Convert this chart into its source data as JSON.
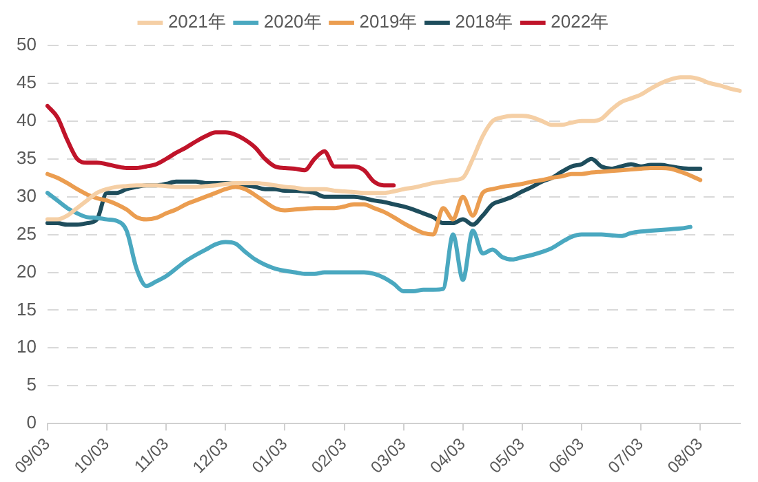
{
  "chart_data": {
    "type": "line",
    "categories": [
      "09/03",
      null,
      null,
      null,
      null,
      null,
      "10/03",
      null,
      null,
      null,
      null,
      null,
      "11/03",
      null,
      null,
      null,
      null,
      null,
      "12/03",
      null,
      null,
      null,
      null,
      null,
      "01/03",
      null,
      null,
      null,
      null,
      null,
      "02/03",
      null,
      null,
      null,
      null,
      null,
      "03/03",
      null,
      null,
      null,
      null,
      null,
      "04/03",
      null,
      null,
      null,
      null,
      null,
      "05/03",
      null,
      null,
      null,
      null,
      null,
      "06/03",
      null,
      null,
      null,
      null,
      null,
      "07/03",
      null,
      null,
      null,
      null,
      null,
      "08/03",
      null,
      null,
      null,
      null
    ],
    "series": [
      {
        "name": "2021年",
        "color": "#f5cfa5",
        "values": [
          27,
          27,
          27.5,
          28.5,
          29.5,
          30.5,
          31,
          31.3,
          31.4,
          31.5,
          31.5,
          31.5,
          31.4,
          31.3,
          31.3,
          31.3,
          31.4,
          31.5,
          31.7,
          31.8,
          31.8,
          31.8,
          31.7,
          31.5,
          31.3,
          31.2,
          31,
          31,
          31,
          30.8,
          30.7,
          30.6,
          30.5,
          30.5,
          30.5,
          30.7,
          31,
          31.2,
          31.5,
          31.8,
          32,
          32.2,
          32.5,
          35,
          38,
          40,
          40.5,
          40.7,
          40.7,
          40.5,
          40,
          39.5,
          39.5,
          39.8,
          40,
          40,
          40.3,
          41.5,
          42.5,
          43,
          43.5,
          44.3,
          45,
          45.5,
          45.8,
          45.8,
          45.5,
          45,
          44.7,
          44.3,
          44
        ]
      },
      {
        "name": "2020年",
        "color": "#4aa8c0",
        "values": [
          30.5,
          29.5,
          28.5,
          27.8,
          27.3,
          27.2,
          27,
          26.8,
          25.5,
          20.5,
          18.2,
          18.8,
          19.5,
          20.5,
          21.5,
          22.3,
          23,
          23.7,
          24,
          23.8,
          22.7,
          21.7,
          21,
          20.5,
          20.2,
          20,
          19.8,
          19.8,
          20,
          20,
          20,
          20,
          20,
          19.8,
          19.3,
          18.5,
          17.5,
          17.5,
          17.7,
          17.7,
          17.8,
          25,
          19,
          25.5,
          22.5,
          23,
          22,
          21.7,
          22,
          22.3,
          22.7,
          23.2,
          24,
          24.7,
          25,
          25,
          25,
          24.9,
          24.8,
          25.2,
          25.4,
          25.5,
          25.6,
          25.7,
          25.8,
          26,
          null,
          null,
          null,
          null,
          null
        ]
      },
      {
        "name": "2019年",
        "color": "#eb9d50",
        "values": [
          33,
          32.5,
          31.8,
          31,
          30.3,
          29.8,
          29.5,
          29,
          28.3,
          27.3,
          27,
          27.2,
          27.8,
          28.3,
          29,
          29.5,
          30,
          30.5,
          31,
          31.3,
          31,
          30.2,
          29.3,
          28.5,
          28.2,
          28.3,
          28.4,
          28.5,
          28.5,
          28.5,
          28.7,
          29,
          29,
          28.5,
          28,
          27.3,
          26.5,
          25.8,
          25.2,
          25,
          28.5,
          27,
          30,
          27.5,
          30.5,
          31,
          31.3,
          31.5,
          31.7,
          32,
          32.2,
          32.5,
          32.7,
          33,
          33,
          33.2,
          33.3,
          33.4,
          33.5,
          33.6,
          33.7,
          33.8,
          33.8,
          33.7,
          33.3,
          32.8,
          32.2,
          null,
          null,
          null,
          null
        ]
      },
      {
        "name": "2018年",
        "color": "#1e4d5c",
        "values": [
          26.5,
          26.5,
          26.3,
          26.3,
          26.5,
          27,
          30.5,
          30.5,
          31,
          31.3,
          31.5,
          31.5,
          31.7,
          32,
          32,
          32,
          31.8,
          31.8,
          31.8,
          31.7,
          31.5,
          31.3,
          31,
          31,
          30.8,
          30.8,
          30.7,
          30.5,
          30,
          30,
          30,
          30,
          29.8,
          29.5,
          29.3,
          29,
          28.7,
          28.3,
          27.8,
          27.3,
          26.5,
          26.5,
          27,
          26.3,
          27.5,
          29,
          29.5,
          30,
          30.7,
          31.3,
          32,
          32.5,
          33.3,
          34,
          34.3,
          35,
          34,
          33.7,
          34,
          34.3,
          34,
          34.2,
          34.2,
          34,
          33.8,
          33.7,
          33.7,
          null,
          null,
          null,
          null
        ]
      },
      {
        "name": "2022年",
        "color": "#c0142a",
        "values": [
          42,
          40.5,
          37.5,
          35,
          34.5,
          34.5,
          34.3,
          34,
          33.8,
          33.8,
          34,
          34.3,
          35,
          35.8,
          36.5,
          37.3,
          38,
          38.5,
          38.5,
          38.2,
          37.5,
          36.5,
          35,
          34,
          33.8,
          33.7,
          33.5,
          35,
          36,
          34,
          34,
          34,
          33.5,
          32,
          31.5,
          31.5,
          null,
          null,
          null,
          null,
          null,
          null,
          null,
          null,
          null,
          null,
          null,
          null,
          null,
          null,
          null,
          null,
          null,
          null,
          null,
          null,
          null,
          null,
          null,
          null,
          null,
          null,
          null,
          null,
          null,
          null,
          null,
          null,
          null,
          null,
          null
        ]
      }
    ],
    "ylim": [
      0,
      50
    ],
    "yticks": [
      0,
      5,
      10,
      15,
      20,
      25,
      30,
      35,
      40,
      45,
      50
    ],
    "grid": "y",
    "legend": "top",
    "marker": "none",
    "line_style": "solid"
  }
}
